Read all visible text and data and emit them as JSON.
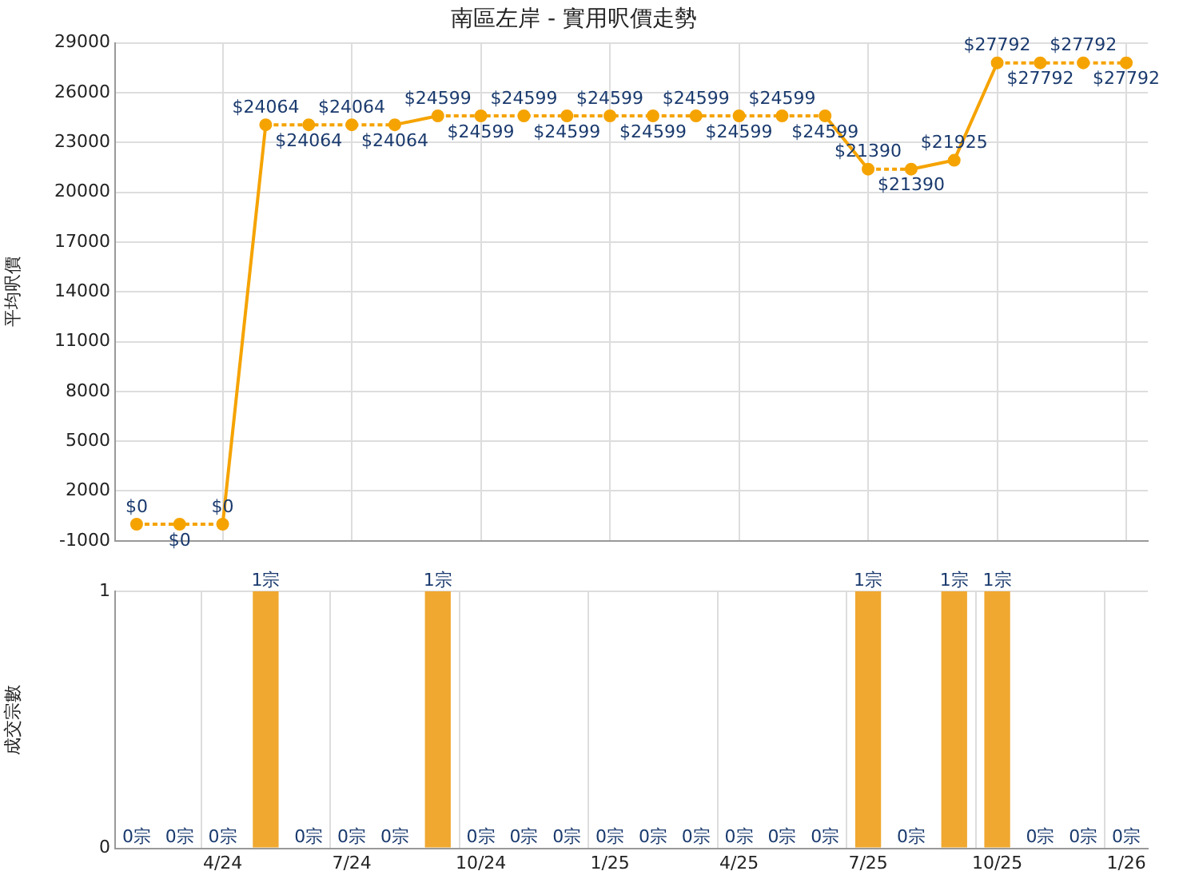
{
  "chart_data": [
    {
      "type": "line",
      "title": "南區左岸 - 實用呎價走勢",
      "ylabel": "平均呎價",
      "categories": [
        null,
        null,
        null,
        null,
        null,
        null,
        null,
        null,
        null,
        null,
        null,
        null,
        null,
        null,
        null,
        null,
        null,
        null,
        null,
        null,
        null,
        null,
        null,
        null
      ],
      "series": [
        {
          "color": "#f5a300",
          "line_style": "dotted",
          "values": [
            0,
            0,
            0,
            24064,
            24064,
            24064,
            24064,
            24599,
            24599,
            24599,
            24599,
            24599,
            24599,
            24599,
            24599,
            24599,
            24599,
            21390,
            21390,
            21925,
            27792,
            27792,
            27792,
            27792
          ],
          "value_labels": [
            "$0",
            "$0",
            "$0",
            "$24064",
            "$24064",
            "$24064",
            "$24064",
            "$24599",
            "$24599",
            "$24599",
            "$24599",
            "$24599",
            "$24599",
            "$24599",
            "$24599",
            "$24599",
            "$24599",
            "$21390",
            "$21390",
            "$21925",
            "$27792",
            "$27792",
            "$27792",
            "$27792"
          ]
        }
      ],
      "ylim": [
        -1000,
        29000
      ],
      "yticks": [
        -1000,
        2000,
        5000,
        8000,
        11000,
        14000,
        17000,
        20000,
        23000,
        26000,
        29000
      ],
      "grid": true,
      "marker": "circle",
      "tick_labels": "y"
    },
    {
      "type": "bar",
      "ylabel": "成交宗數",
      "categories": [
        null,
        null,
        "4/24",
        null,
        null,
        "7/24",
        null,
        null,
        "10/24",
        null,
        null,
        "1/25",
        null,
        null,
        "4/25",
        null,
        null,
        "7/25",
        null,
        null,
        "10/25",
        null,
        null,
        "1/26"
      ],
      "values": [
        0,
        0,
        0,
        1,
        0,
        0,
        0,
        1,
        0,
        0,
        0,
        0,
        0,
        0,
        0,
        0,
        0,
        1,
        0,
        1,
        1,
        0,
        0,
        0
      ],
      "value_labels": [
        "0宗",
        "0宗",
        "0宗",
        "1宗",
        "0宗",
        "0宗",
        "0宗",
        "1宗",
        "0宗",
        "0宗",
        "0宗",
        "0宗",
        "0宗",
        "0宗",
        "0宗",
        "0宗",
        "0宗",
        "1宗",
        "0宗",
        "1宗",
        "1宗",
        "0宗",
        "0宗",
        "0宗"
      ],
      "color": "#f0a830",
      "ylim": [
        0,
        1
      ],
      "yticks": [
        0,
        1
      ],
      "grid": true
    }
  ]
}
